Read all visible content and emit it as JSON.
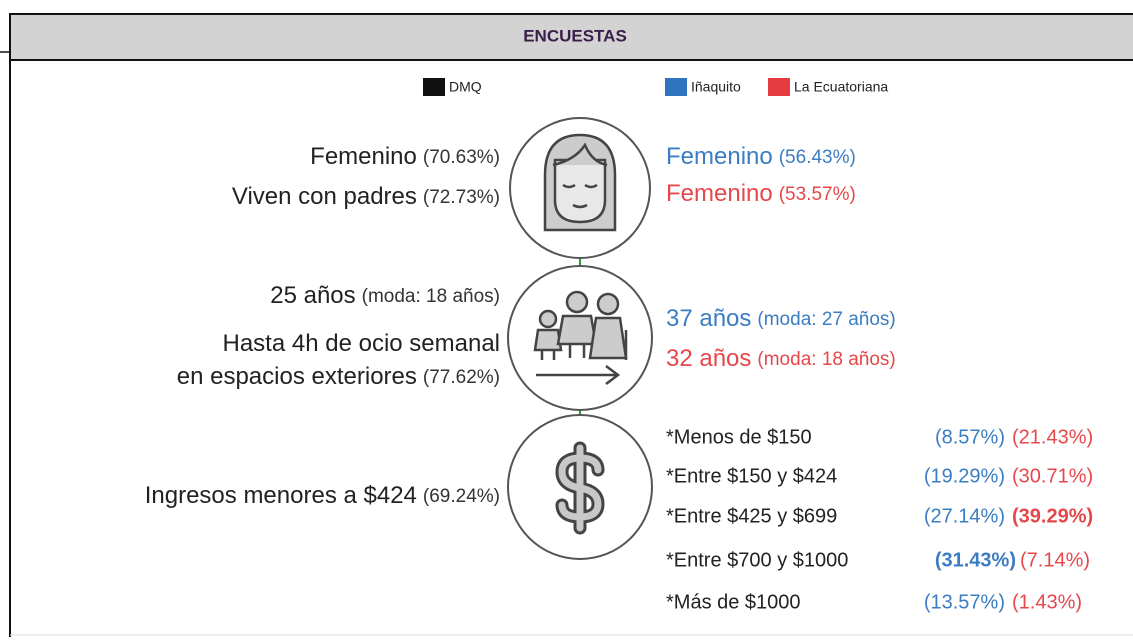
{
  "header": {
    "title": "ENCUESTAS"
  },
  "legend": {
    "left": [
      "DMQ"
    ],
    "right": [
      "Iñaquito",
      "La Ecuatoriana"
    ]
  },
  "sections": [
    {
      "left": [
        {
          "text": "Femenino",
          "detail": "(70.63%)"
        },
        {
          "text": "Viven con padres",
          "detail": "(72.73%)"
        }
      ],
      "inaquito": {
        "text": "Femenino",
        "detail": "(56.43%)"
      },
      "ecuatoriana": {
        "text": "Femenino",
        "detail": "(53.57%)"
      }
    },
    {
      "left": [
        {
          "text": "25 años",
          "detail": "(moda: 18 años)"
        },
        {
          "text": "Hasta 4h de ocio semanal"
        },
        {
          "text": "en espacios exteriores",
          "detail": "(77.62%)"
        }
      ],
      "inaquito": {
        "text": "37 años",
        "detail": "(moda: 27 años)"
      },
      "ecuatoriana": {
        "text": "32 años",
        "detail": "(moda: 18 años)"
      }
    },
    {
      "left": [
        {
          "text": "Ingresos menores a $424",
          "detail": "(69.24%)"
        }
      ],
      "income": [
        {
          "label": "*Menos de $150",
          "inaquito": "(8.57%)",
          "ecuatoriana": "(21.43%)"
        },
        {
          "label": "*Entre $150 y $424",
          "inaquito": "(19.29%)",
          "ecuatoriana": "(30.71%)"
        },
        {
          "label": "*Entre $425 y $699",
          "inaquito": "(27.14%)",
          "ecuatoriana": "(39.29%)",
          "ecuatoriana_bold": true
        },
        {
          "label": "*Entre $700 y $1000",
          "inaquito": "(31.43%)",
          "ecuatoriana": "(7.14%)",
          "inaquito_bold": true
        },
        {
          "label": "*Más de $1000",
          "inaquito": "(13.57%)",
          "ecuatoriana": "(1.43%)"
        }
      ]
    }
  ]
}
